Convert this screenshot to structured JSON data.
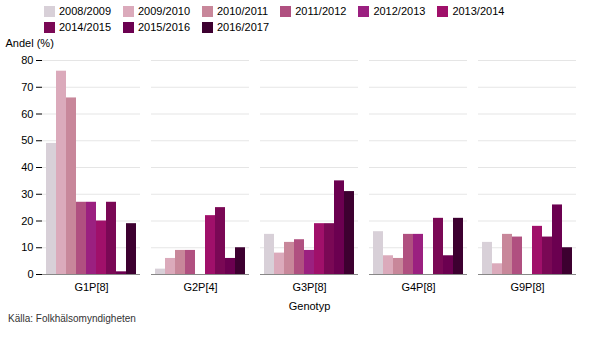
{
  "chart_data": {
    "type": "bar",
    "xlabel": "Genotyp",
    "ylabel": "Andel (%)",
    "source": "Källa:  Folkhälsomyndigheten",
    "categories": [
      "G1P[8]",
      "G2P[4]",
      "G3P[8]",
      "G4P[8]",
      "G9P[8]"
    ],
    "series": [
      {
        "name": "2008/2009",
        "color": "#d8d0d8",
        "values": [
          49,
          2,
          15,
          16,
          12
        ]
      },
      {
        "name": "2009/2010",
        "color": "#dbaabb",
        "values": [
          76,
          6,
          8,
          7,
          4
        ]
      },
      {
        "name": "2010/2011",
        "color": "#c8879a",
        "values": [
          66,
          9,
          12,
          6,
          15
        ]
      },
      {
        "name": "2011/2012",
        "color": "#b05080",
        "values": [
          27,
          9,
          13,
          15,
          14
        ]
      },
      {
        "name": "2012/2013",
        "color": "#9b2080",
        "values": [
          27,
          0,
          9,
          15,
          0
        ]
      },
      {
        "name": "2013/2014",
        "color": "#a0106a",
        "values": [
          20,
          22,
          19,
          0,
          18
        ]
      },
      {
        "name": "2014/2015",
        "color": "#7a0855",
        "values": [
          27,
          25,
          19,
          21,
          14
        ]
      },
      {
        "name": "2015/2016",
        "color": "#6b0050",
        "values": [
          1,
          6,
          35,
          7,
          26
        ]
      },
      {
        "name": "2016/2017",
        "color": "#3d0030",
        "values": [
          19,
          10,
          31,
          21,
          10
        ]
      }
    ],
    "ylim": [
      0,
      80
    ],
    "yticks": [
      0,
      10,
      20,
      30,
      40,
      50,
      60,
      70,
      80
    ],
    "grid": true,
    "legend": "top"
  }
}
